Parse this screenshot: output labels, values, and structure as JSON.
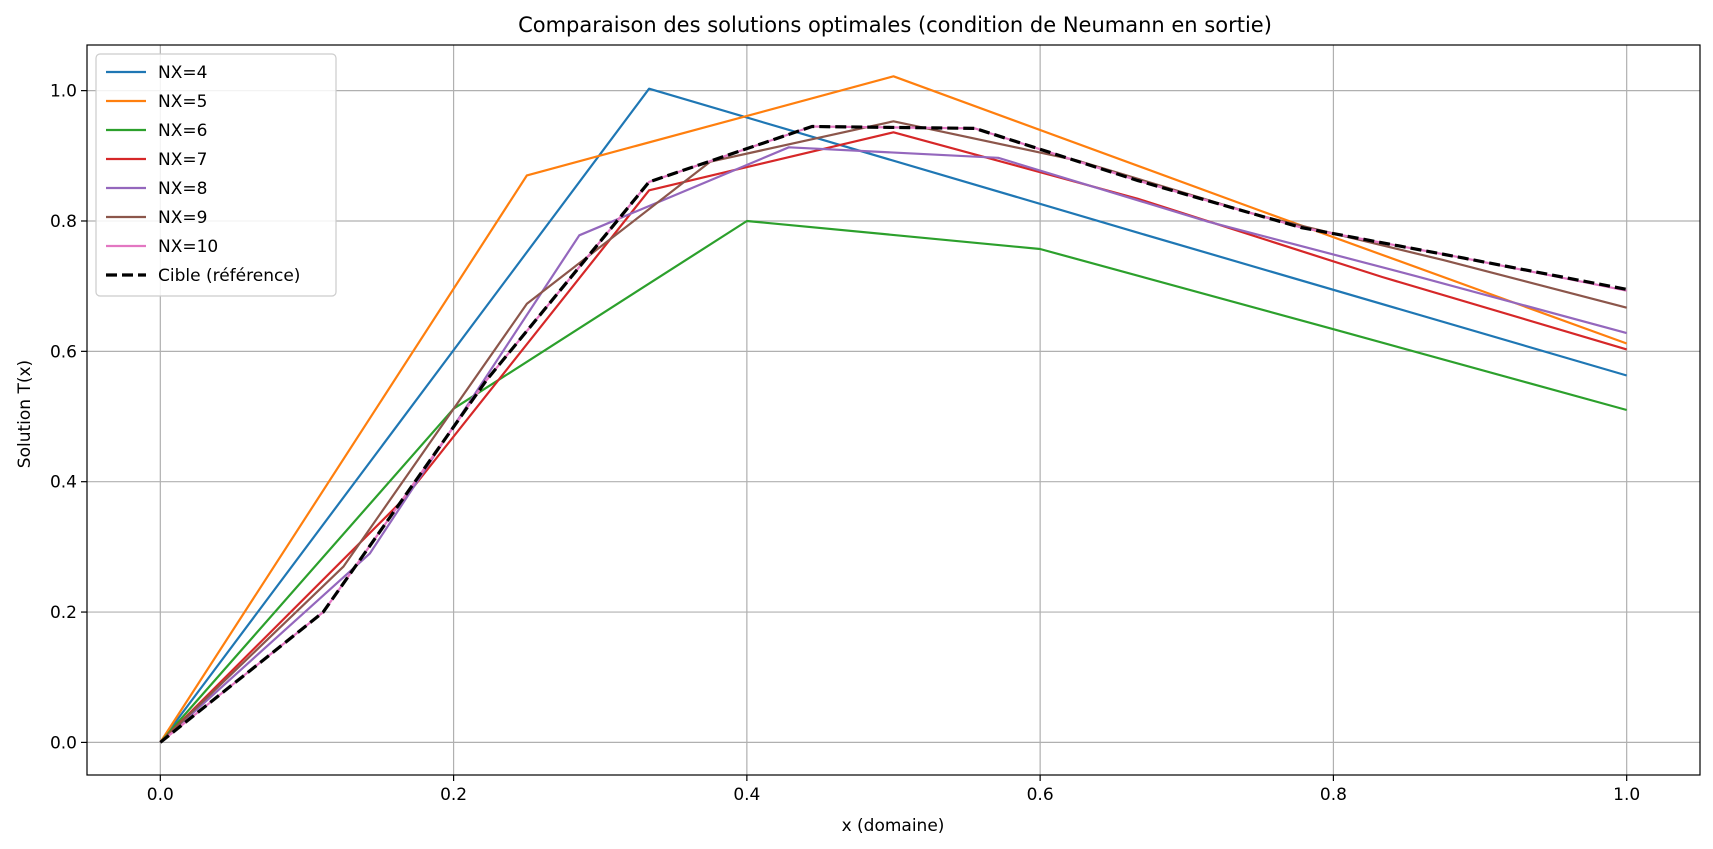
{
  "chart_data": {
    "type": "line",
    "title": "Comparaison des solutions optimales (condition de Neumann en sortie)",
    "xlabel": "x (domaine)",
    "ylabel": "Solution T(x)",
    "xlim": [
      -0.05,
      1.05
    ],
    "ylim": [
      -0.05,
      1.07
    ],
    "xticks": [
      0.0,
      0.2,
      0.4,
      0.6,
      0.8,
      1.0
    ],
    "xtick_labels": [
      "0.0",
      "0.2",
      "0.4",
      "0.6",
      "0.8",
      "1.0"
    ],
    "yticks": [
      0.0,
      0.2,
      0.4,
      0.6,
      0.8,
      1.0
    ],
    "ytick_labels": [
      "0.0",
      "0.2",
      "0.4",
      "0.6",
      "0.8",
      "1.0"
    ],
    "grid": true,
    "legend_position": "top-left",
    "series": [
      {
        "name": "NX=4",
        "color": "#1f77b4",
        "dashed": false,
        "x": [
          0.0,
          0.3333,
          0.6667,
          1.0
        ],
        "y": [
          0.0,
          1.003,
          0.782,
          0.563
        ]
      },
      {
        "name": "NX=5",
        "color": "#ff7f0e",
        "dashed": false,
        "x": [
          0.0,
          0.25,
          0.5,
          0.75,
          1.0
        ],
        "y": [
          0.0,
          0.87,
          1.022,
          0.816,
          0.612
        ]
      },
      {
        "name": "NX=6",
        "color": "#2ca02c",
        "dashed": false,
        "x": [
          0.0,
          0.2,
          0.4,
          0.6,
          0.8,
          1.0
        ],
        "y": [
          0.0,
          0.512,
          0.8,
          0.757,
          0.634,
          0.51
        ]
      },
      {
        "name": "NX=7",
        "color": "#d62728",
        "dashed": false,
        "x": [
          0.0,
          0.1667,
          0.3333,
          0.5,
          0.6667,
          0.8333,
          1.0
        ],
        "y": [
          0.0,
          0.375,
          0.847,
          0.936,
          0.834,
          0.714,
          0.603
        ]
      },
      {
        "name": "NX=8",
        "color": "#9467bd",
        "dashed": false,
        "x": [
          0.0,
          0.1429,
          0.2857,
          0.4286,
          0.5714,
          0.7143,
          0.8571,
          1.0
        ],
        "y": [
          0.0,
          0.29,
          0.778,
          0.913,
          0.897,
          0.799,
          0.715,
          0.628
        ]
      },
      {
        "name": "NX=9",
        "color": "#8c564b",
        "dashed": false,
        "x": [
          0.0,
          0.125,
          0.25,
          0.375,
          0.5,
          0.625,
          0.75,
          0.875,
          1.0
        ],
        "y": [
          0.0,
          0.27,
          0.673,
          0.891,
          0.953,
          0.893,
          0.808,
          0.74,
          0.667
        ]
      },
      {
        "name": "NX=10",
        "color": "#e377c2",
        "dashed": false,
        "x": [
          0.0,
          0.1111,
          0.2222,
          0.3333,
          0.4444,
          0.5556,
          0.6667,
          0.7778,
          0.8889,
          1.0
        ],
        "y": [
          0.0,
          0.2,
          0.555,
          0.86,
          0.945,
          0.942,
          0.862,
          0.79,
          0.743,
          0.693
        ]
      },
      {
        "name": "Cible (référence)",
        "color": "#000000",
        "dashed": true,
        "x": [
          0.0,
          0.1111,
          0.2222,
          0.3333,
          0.4444,
          0.5556,
          0.6667,
          0.7778,
          0.8889,
          1.0
        ],
        "y": [
          0.0,
          0.2,
          0.555,
          0.86,
          0.945,
          0.942,
          0.862,
          0.79,
          0.743,
          0.695
        ]
      }
    ]
  }
}
